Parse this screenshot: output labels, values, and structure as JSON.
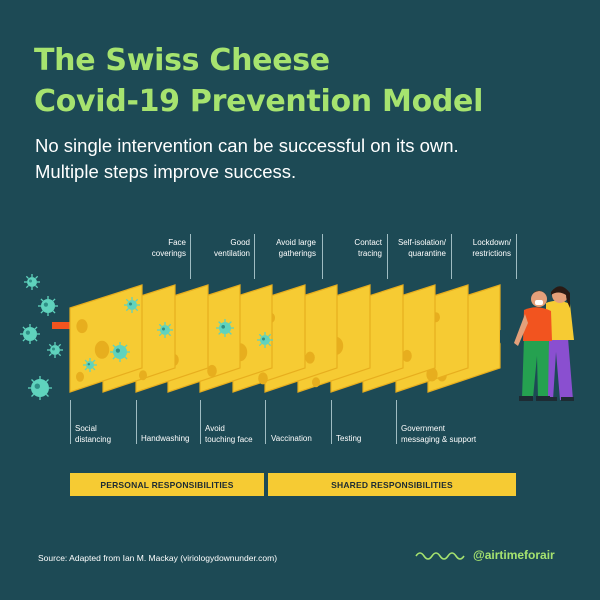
{
  "title": {
    "line1": "The Swiss Cheese",
    "line2": "Covid-19 Prevention Model"
  },
  "subtitle": {
    "line1": "No single intervention can be successful on its own.",
    "line2": "Multiple steps improve success."
  },
  "layers_top": [
    {
      "line1": "Face",
      "line2": "coverings"
    },
    {
      "line1": "Good",
      "line2": "ventilation"
    },
    {
      "line1": "Avoid large",
      "line2": "gatherings"
    },
    {
      "line1": "Contact",
      "line2": "tracing"
    },
    {
      "line1": "Self-isolation/",
      "line2": "quarantine"
    },
    {
      "line1": "Lockdown/",
      "line2": "restrictions"
    }
  ],
  "layers_bottom": [
    {
      "line1": "Social",
      "line2": "distancing"
    },
    {
      "line1": "Handwashing",
      "line2": ""
    },
    {
      "line1": "Avoid",
      "line2": "touching face"
    },
    {
      "line1": "Vaccination",
      "line2": ""
    },
    {
      "line1": "Testing",
      "line2": ""
    },
    {
      "line1": "Government",
      "line2": "messaging & support"
    }
  ],
  "responsibilities": {
    "personal": "PERSONAL RESPONSIBILITIES",
    "shared": "SHARED RESPONSIBILITIES"
  },
  "source": "Source: Adapted from Ian M. Mackay (viriologydownunder.com)",
  "brand": {
    "handle": "@airtimeforair",
    "icon": "wave-icon"
  },
  "colors": {
    "background": "#1d4a55",
    "title": "#a6e36f",
    "cheese": "#f6cb33",
    "cheese_edge": "#e7ae1e",
    "virus": "#5fd3bd",
    "arrow": "#f2541f"
  }
}
